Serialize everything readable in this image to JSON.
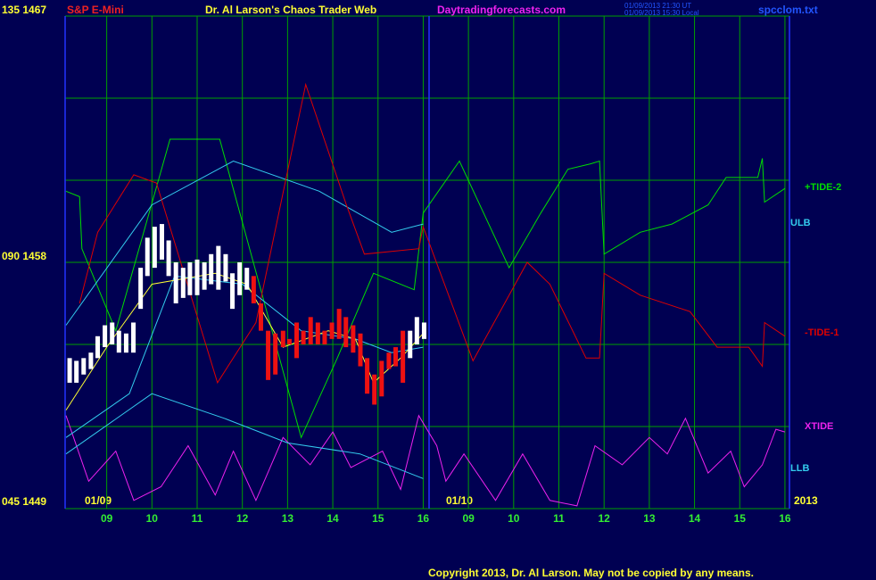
{
  "chart_data": {
    "type": "line",
    "header": {
      "symbol": "S&P E-Mini",
      "title": "Dr. Al Larson's Chaos Trader Web",
      "site": "Daytradingforecasts.com",
      "time_ut": "01/09/2013 21:30 UT",
      "time_local": "01/09/2013 15:30 Local",
      "file": "spcclom.txt"
    },
    "date_labels": [
      "01/09",
      "01/10",
      "2013"
    ],
    "copyright": "Copyright 2013, Dr. Al Larson. May not be copied by any means.",
    "xlim": [
      -0.92,
      15.1
    ],
    "ylim": [
      1449,
      1467
    ],
    "xticks": [
      {
        "value": 0,
        "label": "09"
      },
      {
        "value": 1,
        "label": "10"
      },
      {
        "value": 2,
        "label": "11"
      },
      {
        "value": 3,
        "label": "12"
      },
      {
        "value": 4,
        "label": "13"
      },
      {
        "value": 5,
        "label": "14"
      },
      {
        "value": 6,
        "label": "15"
      },
      {
        "value": 7,
        "label": "16"
      },
      {
        "value": 8,
        "label": "09"
      },
      {
        "value": 9,
        "label": "10"
      },
      {
        "value": 10,
        "label": "11"
      },
      {
        "value": 11,
        "label": "12"
      },
      {
        "value": 12,
        "label": "13"
      },
      {
        "value": 13,
        "label": "14"
      },
      {
        "value": 14,
        "label": "15"
      },
      {
        "value": 15,
        "label": "16"
      }
    ],
    "yticks": [
      {
        "value": 1449,
        "label": "045 1449"
      },
      {
        "value": 1452,
        "label": null
      },
      {
        "value": 1455,
        "label": null
      },
      {
        "value": 1458,
        "label": "090 1458"
      },
      {
        "value": 1461,
        "label": null
      },
      {
        "value": 1464,
        "label": null
      },
      {
        "value": 1467,
        "label": "135 1467"
      }
    ],
    "grid": true,
    "series": [
      {
        "name": "+TIDE-2",
        "color": "#00dd00",
        "x": [
          -0.9,
          -0.6,
          -0.55,
          0.2,
          1.4,
          2.5,
          4.3,
          5.1,
          5.9,
          6.8,
          7.0,
          7.8,
          8.9,
          9.6,
          10.2,
          10.7,
          10.9,
          11.0,
          11.8,
          12.5,
          13.3,
          13.7,
          14.4,
          14.5,
          14.55,
          15.0
        ],
        "values": [
          1460.6,
          1460.4,
          1458.5,
          1455.5,
          1462.5,
          1462.5,
          1451.6,
          1454.5,
          1457.6,
          1457.0,
          1459.8,
          1461.7,
          1457.8,
          1459.8,
          1461.4,
          1461.6,
          1461.7,
          1458.3,
          1459.1,
          1459.4,
          1460.1,
          1461.1,
          1461.1,
          1461.8,
          1460.2,
          1460.7
        ]
      },
      {
        "name": "ULB",
        "color": "#33ccee",
        "x": [
          -0.9,
          1.0,
          2.8,
          4.7,
          6.3,
          7.0
        ],
        "values": [
          1455.7,
          1460.1,
          1461.7,
          1460.6,
          1459.1,
          1459.4
        ]
      },
      {
        "name": "-TIDE-1",
        "color": "#dd0000",
        "x": [
          -0.6,
          -0.2,
          0.6,
          1.1,
          2.45,
          3.3,
          4.4,
          5.3,
          5.7,
          6.9,
          7.0,
          8.1,
          9.3,
          9.8,
          10.6,
          10.9,
          11.0,
          11.8,
          12.9,
          13.5,
          14.2,
          14.5,
          14.55,
          15.0
        ],
        "values": [
          1456.5,
          1459.1,
          1461.2,
          1460.9,
          1453.6,
          1455.8,
          1464.5,
          1460.1,
          1458.3,
          1458.5,
          1459.3,
          1454.4,
          1458.0,
          1457.2,
          1454.5,
          1454.5,
          1457.6,
          1456.8,
          1456.2,
          1454.9,
          1454.9,
          1454.2,
          1455.8,
          1455.3
        ]
      },
      {
        "name": "XTIDE",
        "color": "#ee22ee",
        "x": [
          -0.9,
          -0.4,
          0.2,
          0.6,
          1.2,
          1.8,
          2.4,
          2.8,
          3.3,
          3.9,
          4.5,
          5.0,
          5.4,
          6.1,
          6.5,
          6.9,
          7.3,
          7.5,
          7.9,
          8.6,
          9.2,
          9.8,
          10.4,
          10.8,
          11.4,
          12.0,
          12.4,
          12.8,
          13.3,
          13.8,
          14.1,
          14.5,
          14.8,
          15.0
        ],
        "values": [
          1452.4,
          1450.0,
          1451.1,
          1449.3,
          1449.8,
          1451.3,
          1449.5,
          1451.1,
          1449.3,
          1451.6,
          1450.6,
          1451.8,
          1450.5,
          1451.1,
          1449.7,
          1452.4,
          1451.3,
          1450.0,
          1451.0,
          1449.3,
          1451.0,
          1449.3,
          1449.1,
          1451.3,
          1450.6,
          1451.6,
          1451.0,
          1452.3,
          1450.3,
          1451.1,
          1449.8,
          1450.6,
          1451.9,
          1451.8
        ]
      },
      {
        "name": "LLB",
        "color": "#33ccee",
        "x": [
          -0.9,
          1.0,
          2.6,
          4.0,
          5.6,
          7.0
        ],
        "values": [
          1451.0,
          1453.2,
          1452.3,
          1451.4,
          1451.0,
          1450.1
        ]
      },
      {
        "color": "#33ccee",
        "x": [
          -0.9,
          0.5,
          1.5,
          3.0,
          4.3,
          5.5,
          6.3,
          7.0
        ],
        "values": [
          1451.6,
          1453.2,
          1457.5,
          1457.2,
          1455.5,
          1455.2,
          1454.7,
          1454.9
        ]
      },
      {
        "color": "#ffff33",
        "x": [
          -0.9,
          0,
          1.0,
          2.4,
          3.1,
          3.9,
          4.9,
          5.5,
          5.9,
          6.5,
          7.0
        ],
        "values": [
          1452.6,
          1454.9,
          1457.2,
          1457.6,
          1457.2,
          1454.9,
          1455.5,
          1455.2,
          1453.6,
          1454.5,
          1455.4
        ]
      }
    ],
    "price_bars": [
      {
        "color": "#ffffff",
        "x": [
          -0.82,
          -0.67,
          -0.51,
          -0.35,
          -0.2,
          -0.04,
          0.12,
          0.27,
          0.43,
          0.59,
          0.75,
          0.9,
          1.06,
          1.22,
          1.37,
          1.53,
          1.69,
          1.84,
          2.0,
          2.16,
          2.31,
          2.47,
          2.63,
          2.78,
          2.94,
          3.1
        ],
        "high": [
          1454.5,
          1454.4,
          1454.5,
          1454.7,
          1455.3,
          1455.7,
          1455.8,
          1455.5,
          1455.4,
          1455.8,
          1457.8,
          1458.9,
          1459.3,
          1459.4,
          1458.8,
          1458.0,
          1457.8,
          1458.0,
          1458.1,
          1458.0,
          1458.3,
          1458.6,
          1458.3,
          1457.6,
          1458.0,
          1457.8
        ],
        "low": [
          1453.6,
          1453.6,
          1453.9,
          1454.1,
          1454.5,
          1454.9,
          1455.0,
          1454.7,
          1454.7,
          1454.7,
          1456.3,
          1457.5,
          1457.8,
          1458.1,
          1457.5,
          1456.5,
          1456.7,
          1456.8,
          1456.8,
          1457.0,
          1457.2,
          1457.0,
          1457.3,
          1456.3,
          1456.8,
          1457.0
        ]
      },
      {
        "color": "#ee1111",
        "x": [
          3.25,
          3.41,
          3.57,
          3.73,
          3.9,
          4.04,
          4.2,
          4.35,
          4.51,
          4.67,
          4.82,
          4.98,
          5.14,
          5.29,
          5.45,
          5.61,
          5.76,
          5.92,
          6.08,
          6.24,
          6.39,
          6.55
        ],
        "high": [
          1457.5,
          1456.5,
          1455.5,
          1455.4,
          1455.5,
          1455.2,
          1455.8,
          1455.5,
          1456.0,
          1455.8,
          1455.5,
          1455.8,
          1456.3,
          1456.0,
          1455.7,
          1455.4,
          1454.5,
          1453.9,
          1454.4,
          1454.7,
          1454.9,
          1455.5
        ],
        "low": [
          1456.5,
          1455.5,
          1453.7,
          1453.9,
          1454.9,
          1455.0,
          1454.5,
          1455.0,
          1455.0,
          1455.0,
          1455.0,
          1455.2,
          1455.2,
          1454.9,
          1454.7,
          1454.2,
          1453.2,
          1452.8,
          1453.1,
          1454.1,
          1454.2,
          1453.6
        ]
      },
      {
        "color": "#ffffff",
        "x": [
          6.71,
          6.86,
          7.02
        ],
        "high": [
          1455.5,
          1456.0,
          1455.8
        ],
        "low": [
          1454.5,
          1455.0,
          1455.2
        ]
      }
    ]
  }
}
